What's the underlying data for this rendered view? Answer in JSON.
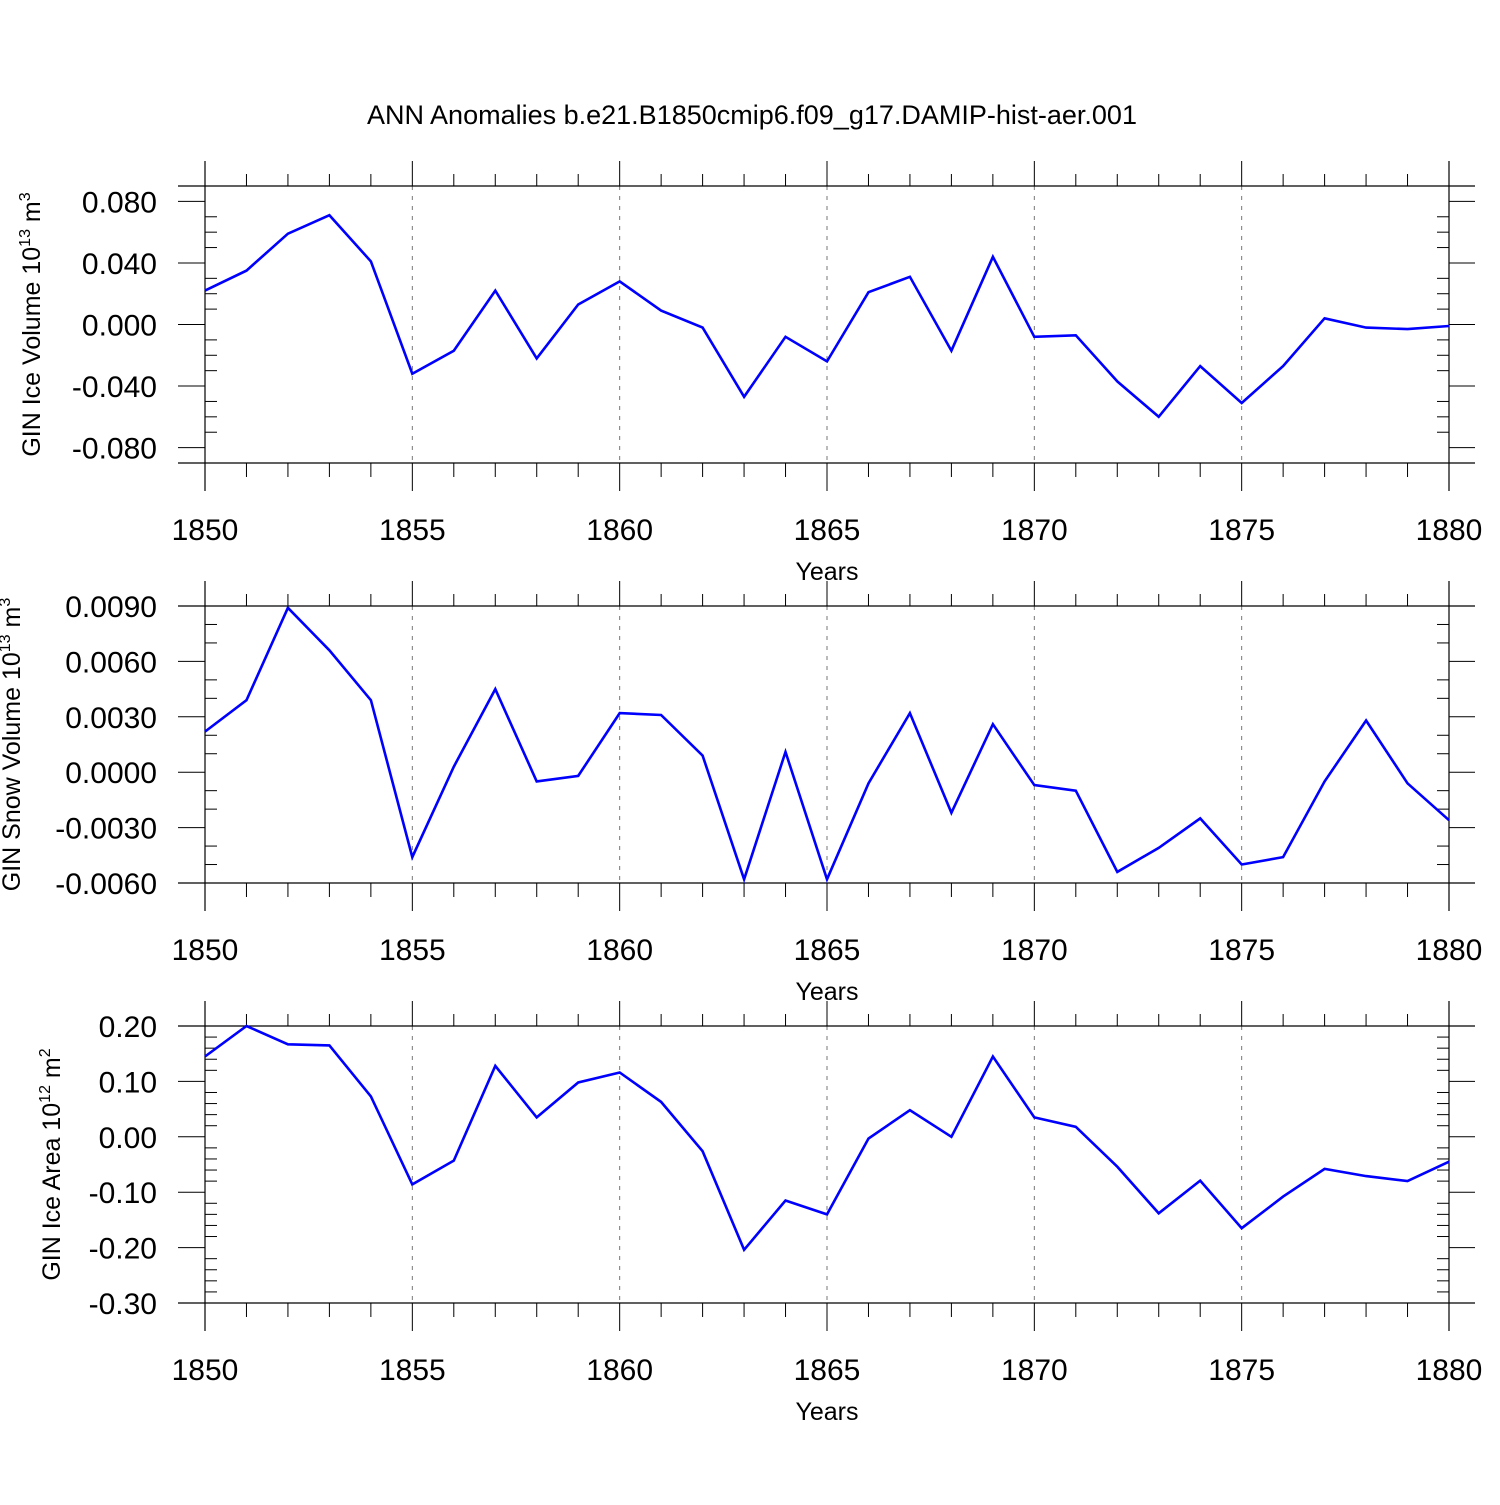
{
  "title": "ANN Anomalies b.e21.B1850cmip6.f09_g17.DAMIP-hist-aer.001",
  "line_color": "#0000ff",
  "chart_data": [
    {
      "type": "line",
      "ylabel_main": "GIN Ice Volume 10",
      "ylabel_exp": "13",
      "ylabel_unit": "m",
      "ylabel_unit_exp": "3",
      "xlabel": "Years",
      "xlim": [
        1850,
        1880
      ],
      "ylim": [
        -0.09,
        0.09
      ],
      "x_ticks": [
        1850,
        1855,
        1860,
        1865,
        1870,
        1875,
        1880
      ],
      "x_tick_labels": [
        "1850",
        "1855",
        "1860",
        "1865",
        "1870",
        "1875",
        "1880"
      ],
      "y_ticks": [
        -0.08,
        -0.04,
        0.0,
        0.04,
        0.08
      ],
      "y_tick_labels": [
        "-0.080",
        "-0.040",
        "0.000",
        "0.040",
        "0.080"
      ],
      "y_minor_step": 0.01,
      "x": [
        1850,
        1851,
        1852,
        1853,
        1854,
        1855,
        1856,
        1857,
        1858,
        1859,
        1860,
        1861,
        1862,
        1863,
        1864,
        1865,
        1866,
        1867,
        1868,
        1869,
        1870,
        1871,
        1872,
        1873,
        1874,
        1875,
        1876,
        1877,
        1878,
        1879,
        1880
      ],
      "values": [
        0.022,
        0.035,
        0.059,
        0.071,
        0.041,
        -0.032,
        -0.017,
        0.022,
        -0.022,
        0.013,
        0.028,
        0.009,
        -0.002,
        -0.047,
        -0.008,
        -0.024,
        0.021,
        0.031,
        -0.017,
        0.044,
        -0.008,
        -0.007,
        -0.037,
        -0.06,
        -0.027,
        -0.051,
        -0.027,
        0.004,
        -0.002,
        -0.003,
        -0.001
      ]
    },
    {
      "type": "line",
      "ylabel_main": "GIN Snow Volume 10",
      "ylabel_exp": "13",
      "ylabel_unit": "m",
      "ylabel_unit_exp": "3",
      "xlabel": "Years",
      "xlim": [
        1850,
        1880
      ],
      "ylim": [
        -0.006,
        0.009
      ],
      "x_ticks": [
        1850,
        1855,
        1860,
        1865,
        1870,
        1875,
        1880
      ],
      "x_tick_labels": [
        "1850",
        "1855",
        "1860",
        "1865",
        "1870",
        "1875",
        "1880"
      ],
      "y_ticks": [
        -0.006,
        -0.003,
        0.0,
        0.003,
        0.006,
        0.009
      ],
      "y_tick_labels": [
        "-0.0060",
        "-0.0030",
        "0.0000",
        "0.0030",
        "0.0060",
        "0.0090"
      ],
      "y_minor_step": 0.001,
      "x": [
        1850,
        1851,
        1852,
        1853,
        1854,
        1855,
        1856,
        1857,
        1858,
        1859,
        1860,
        1861,
        1862,
        1863,
        1864,
        1865,
        1866,
        1867,
        1868,
        1869,
        1870,
        1871,
        1872,
        1873,
        1874,
        1875,
        1876,
        1877,
        1878,
        1879,
        1880
      ],
      "values": [
        0.0022,
        0.0039,
        0.0089,
        0.0066,
        0.0039,
        -0.0046,
        0.0003,
        0.0045,
        -0.0005,
        -0.0002,
        0.0032,
        0.0031,
        0.0009,
        -0.0058,
        0.0011,
        -0.0058,
        -0.0006,
        0.0032,
        -0.0022,
        0.0026,
        -0.0007,
        -0.001,
        -0.0054,
        -0.0041,
        -0.0025,
        -0.005,
        -0.0046,
        -0.0005,
        0.0028,
        -0.0006,
        -0.0026
      ]
    },
    {
      "type": "line",
      "ylabel_main": "GIN Ice Area 10",
      "ylabel_exp": "12",
      "ylabel_unit": "m",
      "ylabel_unit_exp": "2",
      "xlabel": "Years",
      "xlim": [
        1850,
        1880
      ],
      "ylim": [
        -0.3,
        0.2
      ],
      "x_ticks": [
        1850,
        1855,
        1860,
        1865,
        1870,
        1875,
        1880
      ],
      "x_tick_labels": [
        "1850",
        "1855",
        "1860",
        "1865",
        "1870",
        "1875",
        "1880"
      ],
      "y_ticks": [
        -0.3,
        -0.2,
        -0.1,
        0.0,
        0.1,
        0.2
      ],
      "y_tick_labels": [
        "-0.30",
        "-0.20",
        "-0.10",
        "0.00",
        "0.10",
        "0.20"
      ],
      "y_minor_step": 0.02,
      "x": [
        1850,
        1851,
        1852,
        1853,
        1854,
        1855,
        1856,
        1857,
        1858,
        1859,
        1860,
        1861,
        1862,
        1863,
        1864,
        1865,
        1866,
        1867,
        1868,
        1869,
        1870,
        1871,
        1872,
        1873,
        1874,
        1875,
        1876,
        1877,
        1878,
        1879,
        1880
      ],
      "values": [
        0.145,
        0.2,
        0.167,
        0.165,
        0.073,
        -0.086,
        -0.043,
        0.128,
        0.035,
        0.098,
        0.116,
        0.063,
        -0.026,
        -0.204,
        -0.115,
        -0.14,
        -0.003,
        0.048,
        0.0,
        0.145,
        0.035,
        0.018,
        -0.054,
        -0.138,
        -0.079,
        -0.165,
        -0.108,
        -0.058,
        -0.071,
        -0.08,
        -0.045
      ]
    }
  ]
}
